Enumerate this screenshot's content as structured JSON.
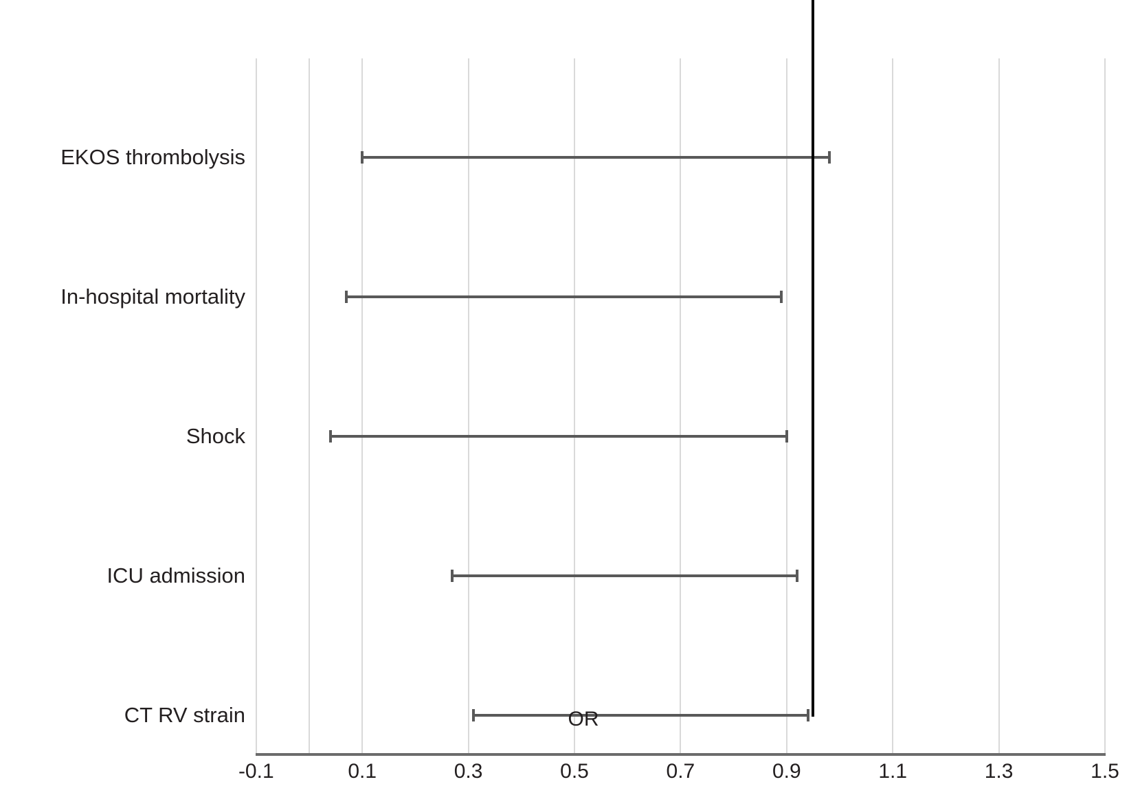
{
  "figure": {
    "background": "#ffffff"
  },
  "colors": {
    "text": "#231f20",
    "gridline": "#d9d9d9",
    "axis_line": "#6b6b6b",
    "ci_bar": "#595959",
    "reference_line": "#000000"
  },
  "chart_data": {
    "type": "scatter",
    "subtype": "forest-plot: horizontal 95% CI whisker bars with end caps, no point markers",
    "title": "",
    "xlabel": "OR",
    "ylabel": "",
    "categories": [
      "EKOS thrombolysis",
      "In-hospital mortality",
      "Shock",
      "ICU admission",
      "CT RV strain"
    ],
    "series": [
      {
        "name": "odds-ratio-confidence-intervals",
        "intervals": [
          {
            "category": "EKOS thrombolysis",
            "low": 0.1,
            "high": 0.98
          },
          {
            "category": "In-hospital mortality",
            "low": 0.07,
            "high": 0.89
          },
          {
            "category": "Shock",
            "low": 0.04,
            "high": 0.9
          },
          {
            "category": "ICU admission",
            "low": 0.27,
            "high": 0.92
          },
          {
            "category": "CT RV strain",
            "low": 0.31,
            "high": 0.94
          }
        ]
      }
    ],
    "reference_line_x": 0.95,
    "xlim": [
      -0.1,
      1.5
    ],
    "x_tick_values": [
      -0.1,
      0.1,
      0.3,
      0.5,
      0.7,
      0.9,
      1.1,
      1.3,
      1.5
    ],
    "x_tick_labels": [
      "-0.1",
      "0.1",
      "0.3",
      "0.5",
      "0.7",
      "0.9",
      "1.1",
      "1.3",
      "1.5"
    ],
    "x_gridline_values": [
      -0.1,
      0.0,
      0.1,
      0.3,
      0.5,
      0.7,
      0.9,
      1.1,
      1.3,
      1.5
    ],
    "grid": "vertical-only",
    "legend": "none"
  }
}
